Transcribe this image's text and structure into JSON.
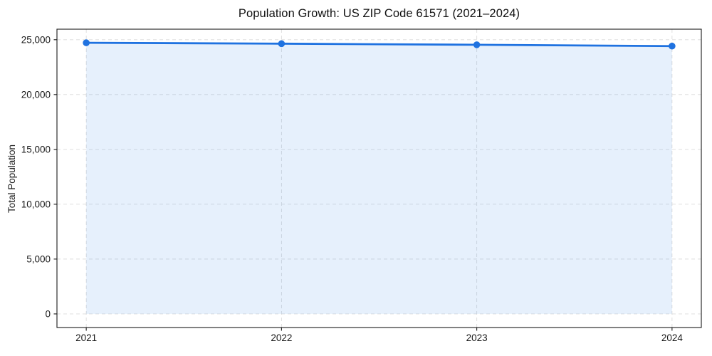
{
  "figure": {
    "title": "Population Growth: US ZIP Code 61571 (2021–2024)"
  },
  "chart_data": {
    "type": "line",
    "title": "Population Growth: US ZIP Code 61571 (2021–2024)",
    "xlabel": "",
    "ylabel": "Total Population",
    "x": [
      2021,
      2022,
      2023,
      2024
    ],
    "series": [
      {
        "name": "Total Population",
        "values": [
          24720,
          24640,
          24540,
          24420
        ]
      }
    ],
    "xticks": [
      2021,
      2022,
      2023,
      2024
    ],
    "yticks": [
      0,
      5000,
      10000,
      15000,
      20000,
      25000
    ],
    "xlim": [
      2020.85,
      2024.15
    ],
    "ylim": [
      -1240,
      25960
    ],
    "grid": true,
    "grid_style": "dashed",
    "legend_position": "none",
    "area_fill": true,
    "marker": "circle",
    "colors": {
      "line": "#1f72e0",
      "marker": "#1f72e0",
      "fill": "rgba(31,114,224,0.11)",
      "grid": "#dbdbdb",
      "spine": "#1a1a1a",
      "tick": "#1a1a1a",
      "background": "#ffffff"
    }
  }
}
